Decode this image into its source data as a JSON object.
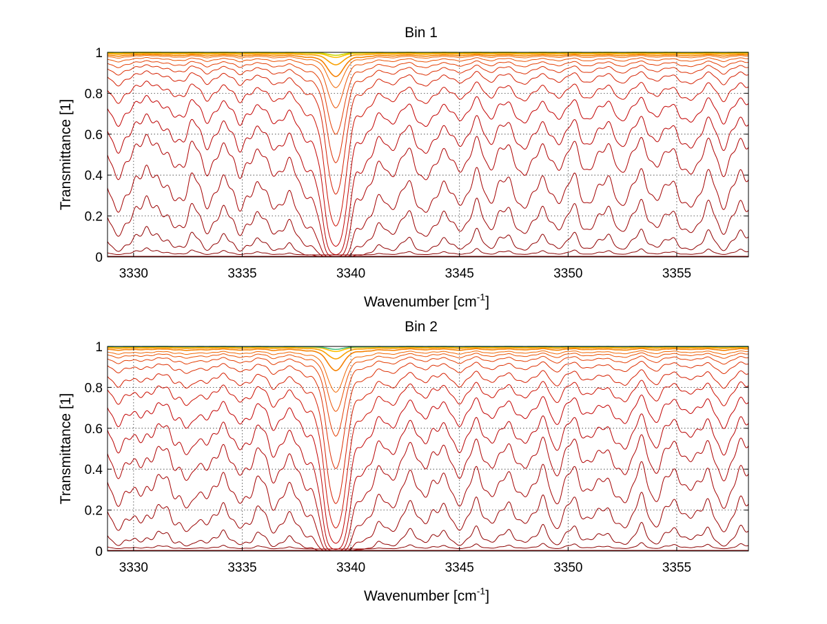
{
  "chart_data": [
    {
      "type": "line",
      "title": "Bin 1",
      "xlabel": "Wavenumber [cm",
      "xlabel_sup": "-1",
      "xlabel_end": "]",
      "ylabel": "Transmittance [1]",
      "xlim": [
        3328.8,
        3358.3
      ],
      "ylim": [
        0,
        1
      ],
      "xticks": [
        3330,
        3335,
        3340,
        3345,
        3350,
        3355
      ],
      "yticks": [
        0,
        0.2,
        0.4,
        0.6,
        0.8,
        1
      ],
      "grid": true,
      "legend": "none",
      "strong_line_center": 3339.3,
      "weak_lines": [
        3329.3,
        3331.9,
        3333.4,
        3334.9,
        3336.4,
        3338.0,
        3340.5,
        3341.8,
        3343.4,
        3344.9,
        3346.4,
        3347.9,
        3349.4,
        3350.9,
        3352.4,
        3354.0,
        3355.5,
        3357.1
      ],
      "series_baselines": [
        0.035,
        0.15,
        0.3,
        0.45,
        0.6,
        0.7,
        0.79,
        0.86,
        0.91,
        0.94,
        0.96,
        0.975,
        0.985,
        0.99,
        0.995,
        0.998,
        1.0
      ],
      "series_colors": [
        "#8b0000",
        "#900000",
        "#9a0000",
        "#a30000",
        "#ad0000",
        "#b80000",
        "#c20000",
        "#cc0f00",
        "#d41e00",
        "#dc2d00",
        "#e33c00",
        "#ea5000",
        "#f06600",
        "#f58000",
        "#f9a000",
        "#fcc000",
        "#c8d800"
      ]
    },
    {
      "type": "line",
      "title": "Bin 2",
      "xlabel": "Wavenumber [cm",
      "xlabel_sup": "-1",
      "xlabel_end": "]",
      "ylabel": "Transmittance [1]",
      "xlim": [
        3328.8,
        3358.3
      ],
      "ylim": [
        0,
        1
      ],
      "xticks": [
        3330,
        3335,
        3340,
        3345,
        3350,
        3355
      ],
      "yticks": [
        0,
        0.2,
        0.4,
        0.6,
        0.8,
        1
      ],
      "grid": true,
      "legend": "none",
      "strong_line_center": 3339.3,
      "weak_lines": [
        3329.3,
        3330.4,
        3331.9,
        3332.6,
        3333.4,
        3334.9,
        3336.4,
        3338.0,
        3340.5,
        3341.8,
        3343.4,
        3344.9,
        3346.4,
        3347.9,
        3349.4,
        3350.9,
        3352.4,
        3354.0,
        3355.5,
        3357.1
      ],
      "series_baselines": [
        0.035,
        0.15,
        0.3,
        0.45,
        0.58,
        0.68,
        0.77,
        0.84,
        0.89,
        0.93,
        0.955,
        0.97,
        0.98,
        0.99,
        0.995,
        0.998,
        1.0
      ],
      "series_colors": [
        "#8b0000",
        "#900000",
        "#9a0000",
        "#a30000",
        "#ad0000",
        "#b80000",
        "#c20000",
        "#cc0f00",
        "#d41e00",
        "#dc2d00",
        "#e33c00",
        "#ea5000",
        "#f06600",
        "#f58000",
        "#f9a000",
        "#fcc000",
        "#40c080"
      ]
    }
  ]
}
